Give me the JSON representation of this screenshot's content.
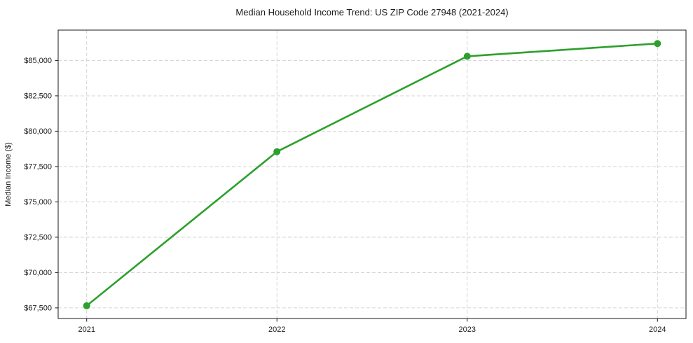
{
  "chart_data": {
    "type": "line",
    "title": "Median Household Income Trend: US ZIP Code 27948 (2021-2024)",
    "xlabel": "",
    "ylabel": "Median Income ($)",
    "x": [
      2021,
      2022,
      2023,
      2024
    ],
    "series": [
      {
        "name": "Median Household Income",
        "values": [
          67650,
          78550,
          85300,
          86200
        ]
      }
    ],
    "xlim": [
      2020.85,
      2024.15
    ],
    "ylim": [
      66750,
      87150
    ],
    "xticks": [
      {
        "value": 2021,
        "label": "2021"
      },
      {
        "value": 2022,
        "label": "2022"
      },
      {
        "value": 2023,
        "label": "2023"
      },
      {
        "value": 2024,
        "label": "2024"
      }
    ],
    "yticks": [
      {
        "value": 67500,
        "label": "$67,500"
      },
      {
        "value": 70000,
        "label": "$70,000"
      },
      {
        "value": 72500,
        "label": "$72,500"
      },
      {
        "value": 75000,
        "label": "$75,000"
      },
      {
        "value": 77500,
        "label": "$77,500"
      },
      {
        "value": 80000,
        "label": "$80,000"
      },
      {
        "value": 82500,
        "label": "$82,500"
      },
      {
        "value": 85000,
        "label": "$85,000"
      }
    ],
    "grid": true,
    "grid_style": "dashed",
    "legend": false,
    "marker": "circle",
    "line_color": "#2ca02c",
    "grid_color": "#d0d0d0",
    "axis_color": "#1a1a1a",
    "text_color": "#1a1a1a",
    "background": "#ffffff"
  }
}
